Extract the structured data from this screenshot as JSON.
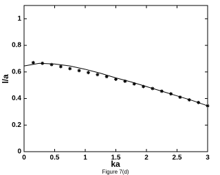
{
  "chart_data": {
    "type": "line",
    "xlabel": "ka",
    "ylabel": "l/a",
    "caption": "Figure 7(d)",
    "xlim": [
      0,
      3
    ],
    "ylim": [
      0,
      1.1
    ],
    "xticks": [
      0,
      0.5,
      1,
      1.5,
      2,
      2.5,
      3
    ],
    "yticks": [
      0,
      0.2,
      0.4,
      0.6,
      0.8,
      1
    ],
    "series": [
      {
        "style": "line",
        "color": "#000000",
        "x": [
          0,
          0.25,
          0.5,
          0.75,
          1,
          1.25,
          1.5,
          1.75,
          2,
          2.25,
          2.5,
          2.75,
          3
        ],
        "values": [
          0.645,
          0.665,
          0.66,
          0.645,
          0.62,
          0.59,
          0.555,
          0.525,
          0.49,
          0.455,
          0.42,
          0.385,
          0.345
        ]
      },
      {
        "style": "marker",
        "color": "#000000",
        "x": [
          0.15,
          0.3,
          0.45,
          0.6,
          0.75,
          0.9,
          1.05,
          1.2,
          1.35,
          1.5,
          1.65,
          1.8,
          1.95,
          2.1,
          2.25,
          2.4,
          2.55,
          2.7,
          2.85,
          3.0
        ],
        "values": [
          0.67,
          0.665,
          0.655,
          0.64,
          0.625,
          0.61,
          0.595,
          0.58,
          0.565,
          0.545,
          0.53,
          0.51,
          0.49,
          0.475,
          0.455,
          0.435,
          0.41,
          0.39,
          0.37,
          0.345
        ]
      }
    ]
  }
}
